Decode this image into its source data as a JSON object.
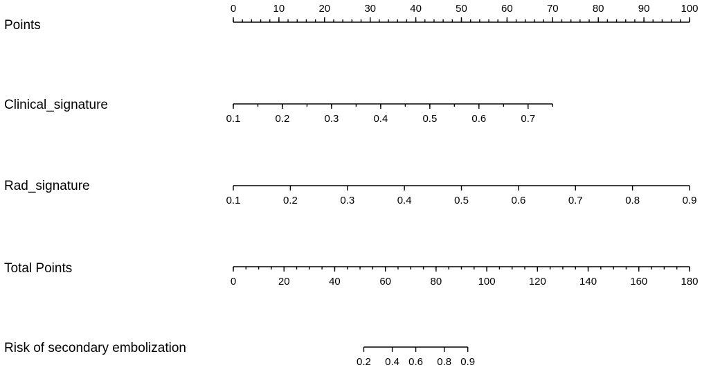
{
  "chart_data": {
    "type": "nomogram",
    "title": "",
    "grid": false,
    "rows": [
      {
        "label": "Points",
        "scale": "linear",
        "range": [
          0,
          100
        ],
        "ticks": [
          0,
          10,
          20,
          30,
          40,
          50,
          60,
          70,
          80,
          90,
          100
        ],
        "tick_labels": [
          "0",
          "10",
          "20",
          "30",
          "40",
          "50",
          "60",
          "70",
          "80",
          "90",
          "100"
        ],
        "minor_step": 2,
        "labels_position": "above",
        "points_at_start": 0,
        "points_at_end": 100
      },
      {
        "label": "Clinical_signature",
        "scale": "linear",
        "range": [
          0.1,
          0.75
        ],
        "ticks": [
          0.1,
          0.2,
          0.3,
          0.4,
          0.5,
          0.6,
          0.7
        ],
        "tick_labels": [
          "0.1",
          "0.2",
          "0.3",
          "0.4",
          "0.5",
          "0.6",
          "0.7"
        ],
        "minor_step": 0.05,
        "labels_position": "below",
        "points_at_start": 0,
        "points_at_end": 70
      },
      {
        "label": "Rad_signature",
        "scale": "linear",
        "range": [
          0.1,
          0.9
        ],
        "ticks": [
          0.1,
          0.2,
          0.3,
          0.4,
          0.5,
          0.6,
          0.7,
          0.8,
          0.9
        ],
        "tick_labels": [
          "0.1",
          "0.2",
          "0.3",
          "0.4",
          "0.5",
          "0.6",
          "0.7",
          "0.8",
          "0.9"
        ],
        "minor_step": null,
        "labels_position": "below",
        "points_at_start": 0,
        "points_at_end": 100
      },
      {
        "label": "Total Points",
        "scale": "linear",
        "range": [
          0,
          180
        ],
        "ticks": [
          0,
          20,
          40,
          60,
          80,
          100,
          120,
          140,
          160,
          180
        ],
        "tick_labels": [
          "0",
          "20",
          "40",
          "60",
          "80",
          "100",
          "120",
          "140",
          "160",
          "180"
        ],
        "minor_step": 5,
        "labels_position": "below",
        "points_at_start": 0,
        "points_at_end": 100
      },
      {
        "label": "Risk of secondary embolization",
        "scale": "logit",
        "range": [
          0.2,
          0.9
        ],
        "ticks": [
          0.2,
          0.4,
          0.6,
          0.8,
          0.9
        ],
        "tick_labels": [
          "0.2",
          "0.4",
          "0.6",
          "0.8",
          "0.9"
        ],
        "minor_step": null,
        "labels_position": "below",
        "points_at_start": 28.6,
        "points_at_end": 51.4
      }
    ]
  }
}
